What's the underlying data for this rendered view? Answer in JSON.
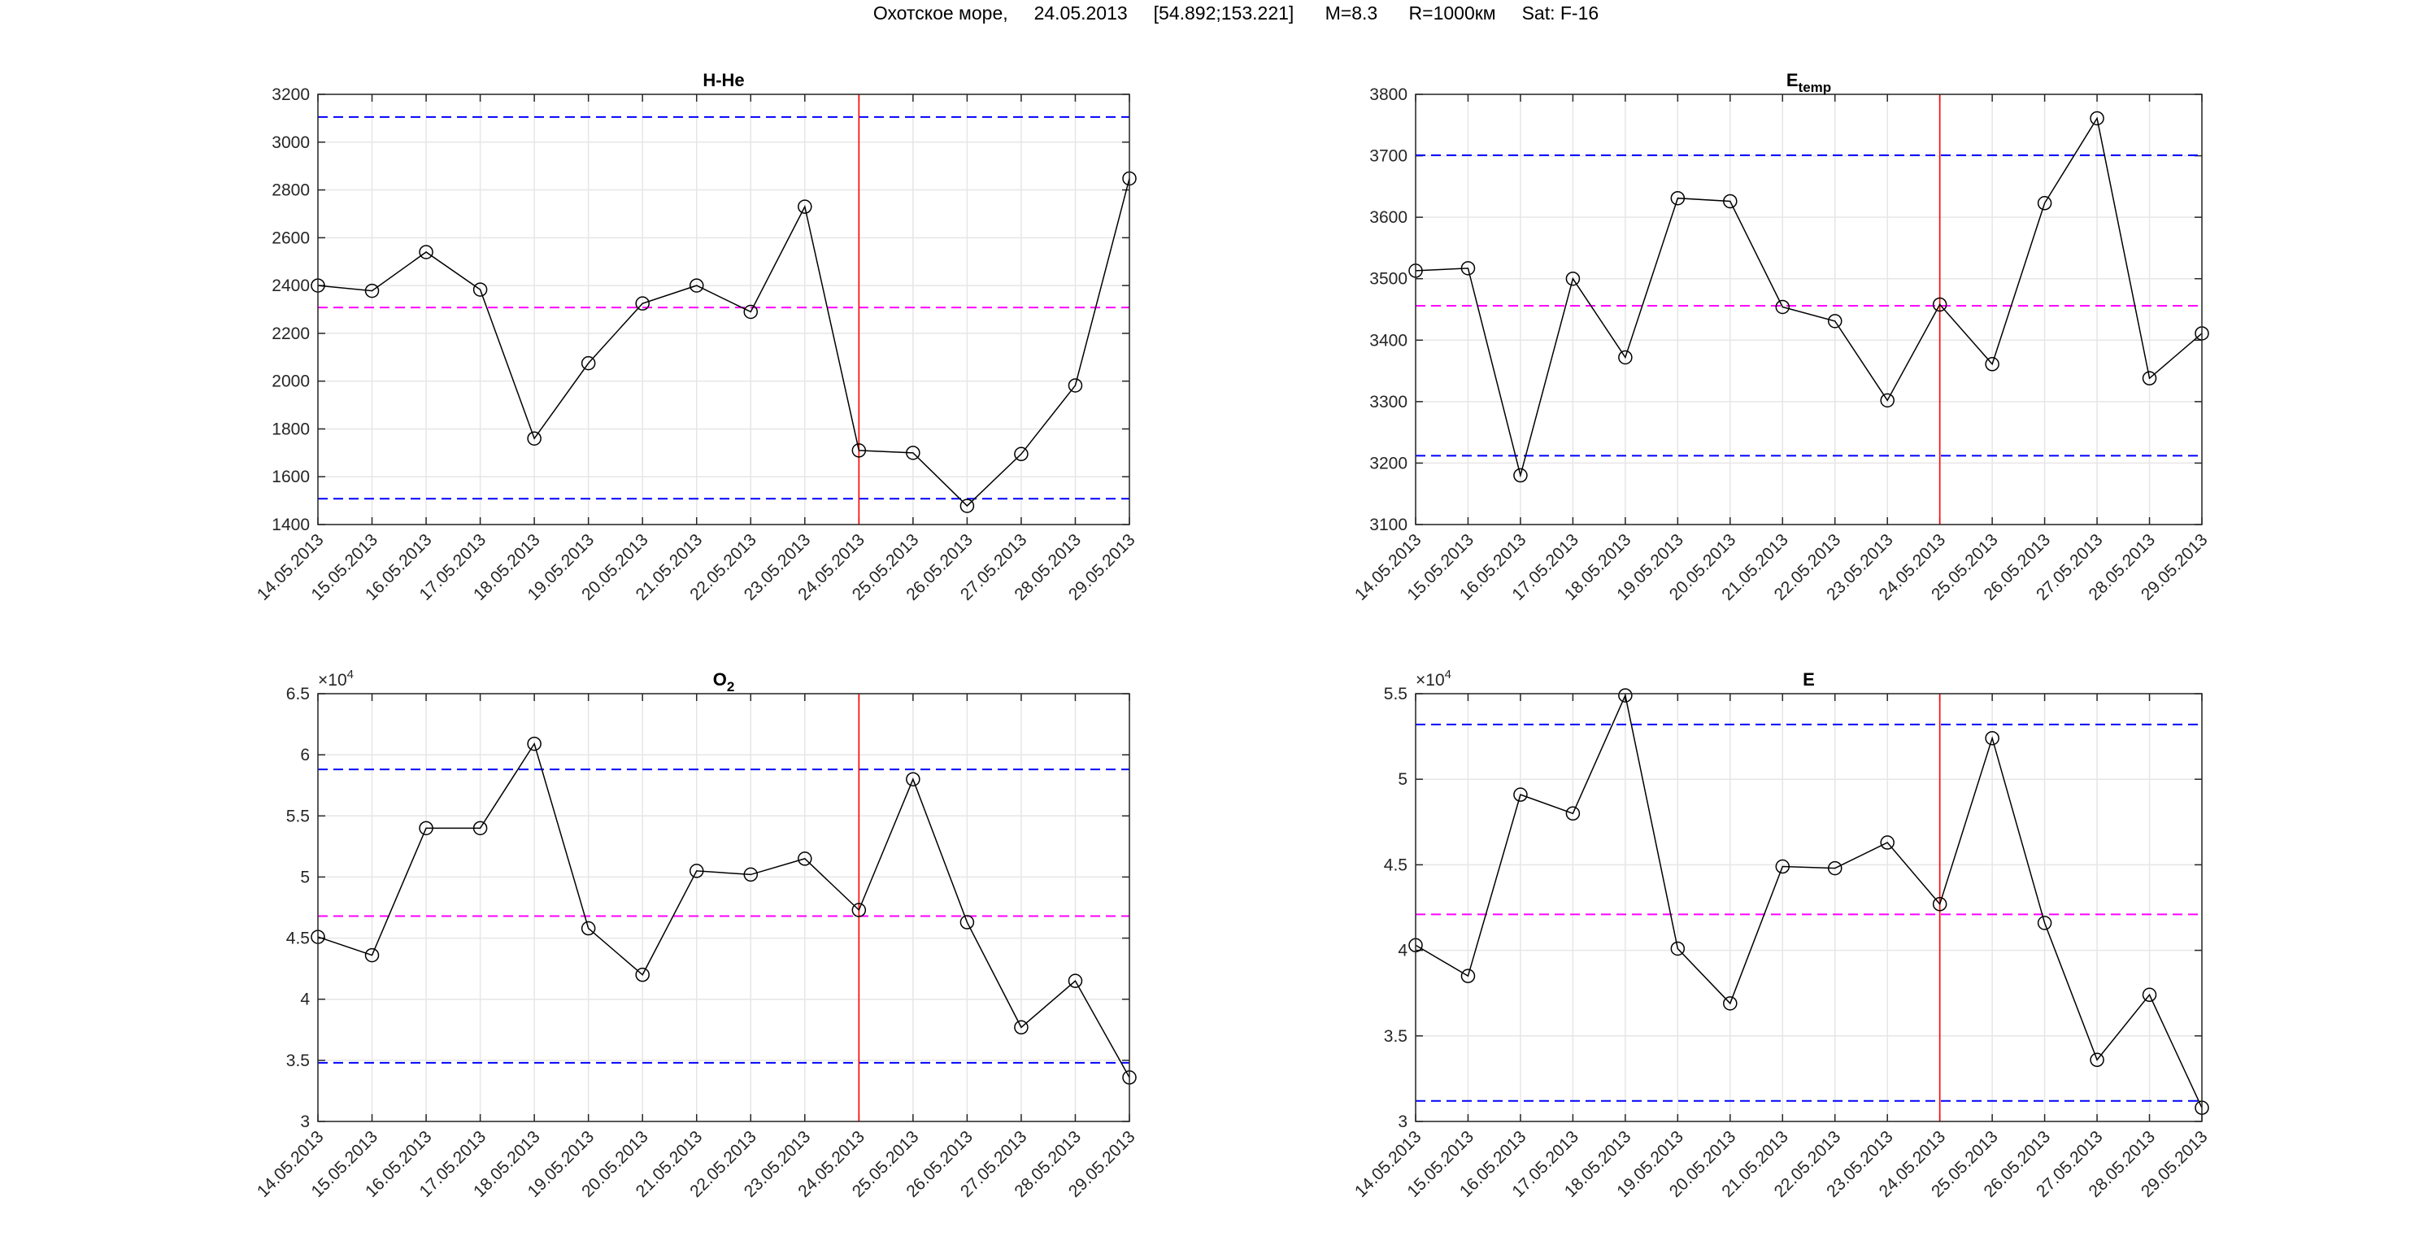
{
  "header": {
    "title": "Охотское море,     24.05.2013     [54.892;153.221]      M=8.3      R=1000км     Sat: F-16"
  },
  "colors": {
    "series": "#000000",
    "bound": "#0000ff",
    "mean": "#ff00ff",
    "event": "#ff0000",
    "grid": "#e6e6e6"
  },
  "chart_data": [
    {
      "type": "line",
      "title": "H-He",
      "title_sub": "",
      "exponent_label": "",
      "categories": [
        "14.05.2013",
        "15.05.2013",
        "16.05.2013",
        "17.05.2013",
        "18.05.2013",
        "19.05.2013",
        "20.05.2013",
        "21.05.2013",
        "22.05.2013",
        "23.05.2013",
        "24.05.2013",
        "25.05.2013",
        "26.05.2013",
        "27.05.2013",
        "28.05.2013",
        "29.05.2013"
      ],
      "values": [
        2400,
        2378,
        2540,
        2383,
        1760,
        2075,
        2325,
        2400,
        2290,
        2730,
        1710,
        1700,
        1478,
        1695,
        1982,
        2848
      ],
      "ylim": [
        1400,
        3200
      ],
      "yticks": [
        1400,
        1600,
        1800,
        2000,
        2200,
        2400,
        2600,
        2800,
        3000,
        3200
      ],
      "ytick_labels": [
        "1400",
        "1600",
        "1800",
        "2000",
        "2200",
        "2400",
        "2600",
        "2800",
        "3000",
        "3200"
      ],
      "upper_bound": 3105,
      "mean": 2308,
      "lower_bound": 1508,
      "event_index": 10,
      "grid": true
    },
    {
      "type": "line",
      "title": "E",
      "title_sub": "temp",
      "exponent_label": "",
      "categories": [
        "14.05.2013",
        "15.05.2013",
        "16.05.2013",
        "17.05.2013",
        "18.05.2013",
        "19.05.2013",
        "20.05.2013",
        "21.05.2013",
        "22.05.2013",
        "23.05.2013",
        "24.05.2013",
        "25.05.2013",
        "26.05.2013",
        "27.05.2013",
        "28.05.2013",
        "29.05.2013"
      ],
      "values": [
        3513,
        3517,
        3180,
        3500,
        3372,
        3631,
        3626,
        3454,
        3431,
        3302,
        3458,
        3361,
        3623,
        3761,
        3338,
        3411
      ],
      "ylim": [
        3100,
        3800
      ],
      "yticks": [
        3100,
        3200,
        3300,
        3400,
        3500,
        3600,
        3700,
        3800
      ],
      "ytick_labels": [
        "3100",
        "3200",
        "3300",
        "3400",
        "3500",
        "3600",
        "3700",
        "3800"
      ],
      "upper_bound": 3701,
      "mean": 3456,
      "lower_bound": 3212,
      "event_index": 10,
      "grid": true
    },
    {
      "type": "line",
      "title": "O",
      "title_sub": "2",
      "exponent_label": "×10",
      "exponent_power": "4",
      "categories": [
        "14.05.2013",
        "15.05.2013",
        "16.05.2013",
        "17.05.2013",
        "18.05.2013",
        "19.05.2013",
        "20.05.2013",
        "21.05.2013",
        "22.05.2013",
        "23.05.2013",
        "24.05.2013",
        "25.05.2013",
        "26.05.2013",
        "27.05.2013",
        "28.05.2013",
        "29.05.2013"
      ],
      "values": [
        45100,
        43600,
        54000,
        54000,
        60900,
        45800,
        42000,
        50500,
        50200,
        51500,
        47300,
        58000,
        46300,
        37700,
        41500,
        33600
      ],
      "ylim": [
        30000,
        65000
      ],
      "yticks": [
        30000,
        35000,
        40000,
        45000,
        50000,
        55000,
        60000,
        65000
      ],
      "ytick_labels": [
        "3",
        "3.5",
        "4",
        "4.5",
        "5",
        "5.5",
        "6",
        "6.5"
      ],
      "upper_bound": 58800,
      "mean": 46800,
      "lower_bound": 34800,
      "event_index": 10,
      "grid": true
    },
    {
      "type": "line",
      "title": "E",
      "title_sub": "",
      "exponent_label": "×10",
      "exponent_power": "4",
      "categories": [
        "14.05.2013",
        "15.05.2013",
        "16.05.2013",
        "17.05.2013",
        "18.05.2013",
        "19.05.2013",
        "20.05.2013",
        "21.05.2013",
        "22.05.2013",
        "23.05.2013",
        "24.05.2013",
        "25.05.2013",
        "26.05.2013",
        "27.05.2013",
        "28.05.2013",
        "29.05.2013"
      ],
      "values": [
        40300,
        38500,
        49100,
        48000,
        54900,
        40100,
        36900,
        44900,
        44800,
        46300,
        42700,
        52400,
        41600,
        33600,
        37400,
        30800
      ],
      "ylim": [
        30000,
        55000
      ],
      "yticks": [
        30000,
        35000,
        40000,
        45000,
        50000,
        55000
      ],
      "ytick_labels": [
        "3",
        "3.5",
        "4",
        "4.5",
        "5",
        "5.5"
      ],
      "upper_bound": 53200,
      "mean": 42100,
      "lower_bound": 31200,
      "event_index": 10,
      "grid": true
    }
  ]
}
